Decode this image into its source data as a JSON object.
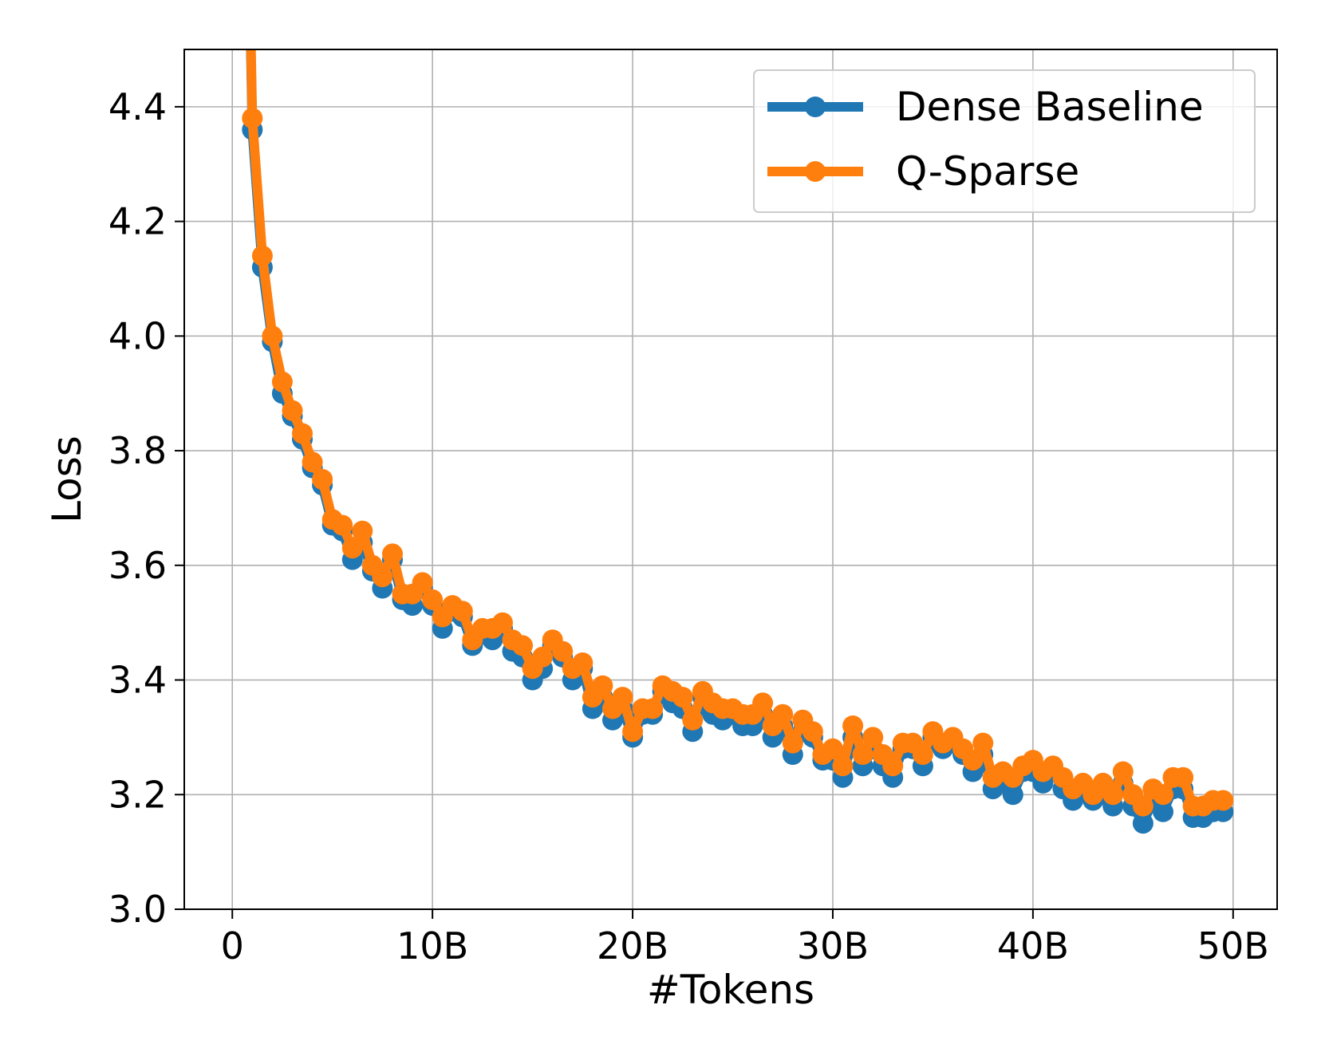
{
  "chart_data": {
    "type": "line",
    "title": "",
    "xlabel": "#Tokens",
    "ylabel": "Loss",
    "xlim": [
      -2.4,
      52.2
    ],
    "ylim": [
      3.0,
      4.5
    ],
    "x_ticks": [
      0,
      10,
      20,
      30,
      40,
      50
    ],
    "x_tick_labels": [
      "0",
      "10B",
      "20B",
      "30B",
      "40B",
      "50B"
    ],
    "y_ticks": [
      3.0,
      3.2,
      3.4,
      3.6,
      3.8,
      4.0,
      4.2,
      4.4
    ],
    "y_tick_labels": [
      "3.0",
      "3.2",
      "3.4",
      "3.6",
      "3.8",
      "4.0",
      "4.2",
      "4.4"
    ],
    "grid": true,
    "legend_position": "top-right",
    "series": [
      {
        "name": "Dense Baseline",
        "color": "#1f77b4",
        "points": [
          [
            0.5,
            5.3
          ],
          [
            1.0,
            4.36
          ],
          [
            1.5,
            4.12
          ],
          [
            2.0,
            3.99
          ],
          [
            2.5,
            3.9
          ],
          [
            3.0,
            3.86
          ],
          [
            3.5,
            3.82
          ],
          [
            4.0,
            3.77
          ],
          [
            4.5,
            3.74
          ],
          [
            5.0,
            3.67
          ],
          [
            5.5,
            3.66
          ],
          [
            6.0,
            3.61
          ],
          [
            6.5,
            3.64
          ],
          [
            7.0,
            3.59
          ],
          [
            7.5,
            3.56
          ],
          [
            8.0,
            3.61
          ],
          [
            8.5,
            3.54
          ],
          [
            9.0,
            3.53
          ],
          [
            9.5,
            3.56
          ],
          [
            10.0,
            3.53
          ],
          [
            10.5,
            3.49
          ],
          [
            11.0,
            3.52
          ],
          [
            11.5,
            3.51
          ],
          [
            12.0,
            3.46
          ],
          [
            12.5,
            3.48
          ],
          [
            13.0,
            3.47
          ],
          [
            13.5,
            3.49
          ],
          [
            14.0,
            3.45
          ],
          [
            14.5,
            3.44
          ],
          [
            15.0,
            3.4
          ],
          [
            15.5,
            3.42
          ],
          [
            16.0,
            3.46
          ],
          [
            16.5,
            3.44
          ],
          [
            17.0,
            3.4
          ],
          [
            17.5,
            3.42
          ],
          [
            18.0,
            3.35
          ],
          [
            18.5,
            3.37
          ],
          [
            19.0,
            3.33
          ],
          [
            19.5,
            3.35
          ],
          [
            20.0,
            3.3
          ],
          [
            20.5,
            3.34
          ],
          [
            21.0,
            3.34
          ],
          [
            21.5,
            3.38
          ],
          [
            22.0,
            3.36
          ],
          [
            22.5,
            3.35
          ],
          [
            23.0,
            3.31
          ],
          [
            23.5,
            3.37
          ],
          [
            24.0,
            3.34
          ],
          [
            24.5,
            3.33
          ],
          [
            25.0,
            3.34
          ],
          [
            25.5,
            3.32
          ],
          [
            26.0,
            3.32
          ],
          [
            26.5,
            3.34
          ],
          [
            27.0,
            3.3
          ],
          [
            27.5,
            3.32
          ],
          [
            28.0,
            3.27
          ],
          [
            28.5,
            3.31
          ],
          [
            29.0,
            3.3
          ],
          [
            29.5,
            3.26
          ],
          [
            30.0,
            3.26
          ],
          [
            30.5,
            3.23
          ],
          [
            31.0,
            3.3
          ],
          [
            31.5,
            3.25
          ],
          [
            32.0,
            3.28
          ],
          [
            32.5,
            3.25
          ],
          [
            33.0,
            3.23
          ],
          [
            33.5,
            3.28
          ],
          [
            34.0,
            3.28
          ],
          [
            34.5,
            3.25
          ],
          [
            35.0,
            3.3
          ],
          [
            35.5,
            3.28
          ],
          [
            36.0,
            3.29
          ],
          [
            36.5,
            3.27
          ],
          [
            37.0,
            3.24
          ],
          [
            37.5,
            3.27
          ],
          [
            38.0,
            3.21
          ],
          [
            38.5,
            3.22
          ],
          [
            39.0,
            3.2
          ],
          [
            39.5,
            3.24
          ],
          [
            40.0,
            3.24
          ],
          [
            40.5,
            3.22
          ],
          [
            41.0,
            3.24
          ],
          [
            41.5,
            3.21
          ],
          [
            42.0,
            3.19
          ],
          [
            42.5,
            3.21
          ],
          [
            43.0,
            3.19
          ],
          [
            43.5,
            3.2
          ],
          [
            44.0,
            3.18
          ],
          [
            44.5,
            3.22
          ],
          [
            45.0,
            3.18
          ],
          [
            45.5,
            3.15
          ],
          [
            46.0,
            3.19
          ],
          [
            46.5,
            3.17
          ],
          [
            47.0,
            3.21
          ],
          [
            47.5,
            3.21
          ],
          [
            48.0,
            3.16
          ],
          [
            48.5,
            3.16
          ],
          [
            49.0,
            3.17
          ],
          [
            49.5,
            3.17
          ]
        ]
      },
      {
        "name": "Q-Sparse",
        "color": "#ff7f0e",
        "points": [
          [
            0.5,
            5.3
          ],
          [
            1.0,
            4.38
          ],
          [
            1.5,
            4.14
          ],
          [
            2.0,
            4.0
          ],
          [
            2.5,
            3.92
          ],
          [
            3.0,
            3.87
          ],
          [
            3.5,
            3.83
          ],
          [
            4.0,
            3.78
          ],
          [
            4.5,
            3.75
          ],
          [
            5.0,
            3.68
          ],
          [
            5.5,
            3.67
          ],
          [
            6.0,
            3.63
          ],
          [
            6.5,
            3.66
          ],
          [
            7.0,
            3.6
          ],
          [
            7.5,
            3.58
          ],
          [
            8.0,
            3.62
          ],
          [
            8.5,
            3.55
          ],
          [
            9.0,
            3.55
          ],
          [
            9.5,
            3.57
          ],
          [
            10.0,
            3.54
          ],
          [
            10.5,
            3.51
          ],
          [
            11.0,
            3.53
          ],
          [
            11.5,
            3.52
          ],
          [
            12.0,
            3.47
          ],
          [
            12.5,
            3.49
          ],
          [
            13.0,
            3.49
          ],
          [
            13.5,
            3.5
          ],
          [
            14.0,
            3.47
          ],
          [
            14.5,
            3.46
          ],
          [
            15.0,
            3.42
          ],
          [
            15.5,
            3.44
          ],
          [
            16.0,
            3.47
          ],
          [
            16.5,
            3.45
          ],
          [
            17.0,
            3.42
          ],
          [
            17.5,
            3.43
          ],
          [
            18.0,
            3.37
          ],
          [
            18.5,
            3.39
          ],
          [
            19.0,
            3.35
          ],
          [
            19.5,
            3.37
          ],
          [
            20.0,
            3.31
          ],
          [
            20.5,
            3.35
          ],
          [
            21.0,
            3.35
          ],
          [
            21.5,
            3.39
          ],
          [
            22.0,
            3.38
          ],
          [
            22.5,
            3.37
          ],
          [
            23.0,
            3.33
          ],
          [
            23.5,
            3.38
          ],
          [
            24.0,
            3.36
          ],
          [
            24.5,
            3.35
          ],
          [
            25.0,
            3.35
          ],
          [
            25.5,
            3.34
          ],
          [
            26.0,
            3.34
          ],
          [
            26.5,
            3.36
          ],
          [
            27.0,
            3.32
          ],
          [
            27.5,
            3.34
          ],
          [
            28.0,
            3.29
          ],
          [
            28.5,
            3.33
          ],
          [
            29.0,
            3.31
          ],
          [
            29.5,
            3.27
          ],
          [
            30.0,
            3.28
          ],
          [
            30.5,
            3.25
          ],
          [
            31.0,
            3.32
          ],
          [
            31.5,
            3.27
          ],
          [
            32.0,
            3.3
          ],
          [
            32.5,
            3.27
          ],
          [
            33.0,
            3.25
          ],
          [
            33.5,
            3.29
          ],
          [
            34.0,
            3.29
          ],
          [
            34.5,
            3.27
          ],
          [
            35.0,
            3.31
          ],
          [
            35.5,
            3.29
          ],
          [
            36.0,
            3.3
          ],
          [
            36.5,
            3.28
          ],
          [
            37.0,
            3.26
          ],
          [
            37.5,
            3.29
          ],
          [
            38.0,
            3.23
          ],
          [
            38.5,
            3.24
          ],
          [
            39.0,
            3.23
          ],
          [
            39.5,
            3.25
          ],
          [
            40.0,
            3.26
          ],
          [
            40.5,
            3.24
          ],
          [
            41.0,
            3.25
          ],
          [
            41.5,
            3.23
          ],
          [
            42.0,
            3.21
          ],
          [
            42.5,
            3.22
          ],
          [
            43.0,
            3.2
          ],
          [
            43.5,
            3.22
          ],
          [
            44.0,
            3.2
          ],
          [
            44.5,
            3.24
          ],
          [
            45.0,
            3.2
          ],
          [
            45.5,
            3.18
          ],
          [
            46.0,
            3.21
          ],
          [
            46.5,
            3.2
          ],
          [
            47.0,
            3.23
          ],
          [
            47.5,
            3.23
          ],
          [
            48.0,
            3.18
          ],
          [
            48.5,
            3.18
          ],
          [
            49.0,
            3.19
          ],
          [
            49.5,
            3.19
          ]
        ]
      }
    ]
  }
}
